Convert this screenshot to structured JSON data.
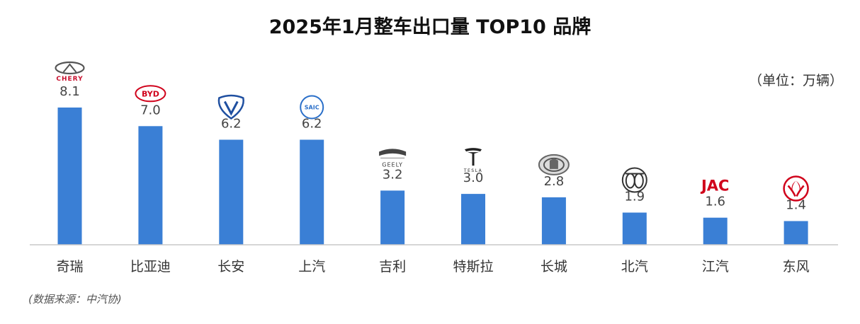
{
  "chart_data": {
    "type": "bar",
    "title": "2025年1月整车出口量 TOP10 品牌",
    "unit_label": "（单位：万辆）",
    "categories": [
      "奇瑞",
      "比亚迪",
      "长安",
      "上汽",
      "吉利",
      "特斯拉",
      "长城",
      "北汽",
      "江汽",
      "东风"
    ],
    "values": [
      8.1,
      7.0,
      6.2,
      6.2,
      3.2,
      3.0,
      2.8,
      1.9,
      1.6,
      1.4
    ],
    "value_labels": [
      "8.1",
      "7.0",
      "6.2",
      "6.2",
      "3.2",
      "3.0",
      "2.8",
      "1.9",
      "1.6",
      "1.4"
    ],
    "xlabel": "",
    "ylabel": "",
    "ylim": [
      0,
      8.1
    ],
    "grid": false,
    "bar_color": "#3a7fd5",
    "source": "(数据来源：中汽协)"
  },
  "logos": [
    {
      "brand": "chery",
      "icon": "chery-logo-icon",
      "text": "CHERY",
      "color": "#c8102e"
    },
    {
      "brand": "byd",
      "icon": "byd-logo-icon",
      "text": "BYD",
      "color": "#d0021b"
    },
    {
      "brand": "changan",
      "icon": "changan-logo-icon",
      "color": "#1f4fa0"
    },
    {
      "brand": "saic",
      "icon": "saic-logo-icon",
      "text": "SAIC",
      "color": "#2a6fc9"
    },
    {
      "brand": "geely",
      "icon": "geely-logo-icon",
      "text": "GEELY",
      "color": "#333333"
    },
    {
      "brand": "tesla",
      "icon": "tesla-logo-icon",
      "text": "TESLA",
      "color": "#222222"
    },
    {
      "brand": "greatwall",
      "icon": "great-wall-logo-icon",
      "color": "#555555"
    },
    {
      "brand": "baic",
      "icon": "baic-logo-icon",
      "color": "#333333"
    },
    {
      "brand": "jac",
      "icon": "jac-logo-icon",
      "text": "JAC",
      "color": "#d0021b"
    },
    {
      "brand": "dongfeng",
      "icon": "dongfeng-logo-icon",
      "color": "#d0021b"
    }
  ]
}
